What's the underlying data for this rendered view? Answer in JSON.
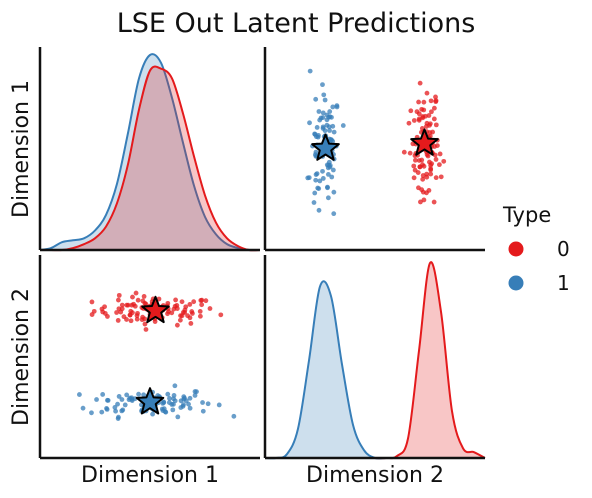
{
  "chart_data": {
    "type": "scatter",
    "title": "LSE Out Latent Predictions",
    "legend": {
      "title": "Type",
      "placement": "right",
      "items": [
        {
          "label": "0",
          "color": "#e41a1c"
        },
        {
          "label": "1",
          "color": "#377eb8"
        }
      ]
    },
    "row_labels": [
      "Dimension 1",
      "Dimension 2"
    ],
    "col_labels": [
      "Dimension 1",
      "Dimension 2"
    ],
    "grid": false,
    "axis_ranges": {
      "dim1": [
        -1.0,
        1.0
      ],
      "dim2": [
        -1.0,
        1.0
      ]
    },
    "diagonal": [
      {
        "variable": "Dimension 1",
        "type": "kde",
        "x": [
          -1.0,
          -0.9,
          -0.8,
          -0.7,
          -0.6,
          -0.5,
          -0.4,
          -0.3,
          -0.2,
          -0.1,
          0.0,
          0.1,
          0.2,
          0.3,
          0.4,
          0.5,
          0.6,
          0.7,
          0.8,
          0.9,
          1.0
        ],
        "series": [
          {
            "name": "1",
            "color": "#377eb8",
            "values": [
              0.0,
              0.01,
              0.04,
              0.05,
              0.06,
              0.1,
              0.18,
              0.34,
              0.6,
              0.88,
              1.0,
              0.96,
              0.78,
              0.55,
              0.33,
              0.17,
              0.08,
              0.03,
              0.01,
              0.0,
              0.0
            ]
          },
          {
            "name": "0",
            "color": "#e41a1c",
            "values": [
              0.0,
              0.0,
              0.0,
              0.01,
              0.03,
              0.06,
              0.12,
              0.24,
              0.44,
              0.72,
              0.92,
              0.93,
              0.88,
              0.7,
              0.48,
              0.28,
              0.14,
              0.06,
              0.02,
              0.0,
              0.0
            ]
          }
        ]
      },
      {
        "variable": "Dimension 2",
        "type": "kde",
        "x": [
          -1.0,
          -0.9,
          -0.8,
          -0.7,
          -0.6,
          -0.5,
          -0.4,
          -0.3,
          -0.2,
          -0.1,
          0.0,
          0.1,
          0.2,
          0.3,
          0.4,
          0.5,
          0.6,
          0.7,
          0.8,
          0.9,
          1.0
        ],
        "series": [
          {
            "name": "1",
            "color": "#377eb8",
            "values": [
              0.0,
              0.0,
              0.02,
              0.15,
              0.5,
              0.88,
              0.83,
              0.48,
              0.17,
              0.04,
              0.0,
              0.0,
              0.0,
              0.0,
              0.0,
              0.0,
              0.0,
              0.0,
              0.0,
              0.0,
              0.0
            ]
          },
          {
            "name": "0",
            "color": "#e41a1c",
            "values": [
              0.0,
              0.0,
              0.0,
              0.0,
              0.0,
              0.0,
              0.0,
              0.0,
              0.0,
              0.0,
              0.0,
              0.0,
              0.01,
              0.1,
              0.55,
              1.0,
              0.75,
              0.24,
              0.05,
              0.03,
              0.0
            ]
          }
        ]
      }
    ],
    "scatter": {
      "points_per_type": 100,
      "series": [
        {
          "name": "0",
          "color": "#e41a1c",
          "center": {
            "dim1": 0.05,
            "dim2": 0.45
          },
          "spread": {
            "dim1": 0.28,
            "dim2": 0.07
          }
        },
        {
          "name": "1",
          "color": "#377eb8",
          "center": {
            "dim1": 0.0,
            "dim2": -0.45
          },
          "spread": {
            "dim1": 0.28,
            "dim2": 0.07
          }
        }
      ]
    },
    "centroids": [
      {
        "name": "0",
        "color": "#e41a1c",
        "dim1": 0.05,
        "dim2": 0.45,
        "marker": "star"
      },
      {
        "name": "1",
        "color": "#377eb8",
        "dim1": 0.0,
        "dim2": -0.45,
        "marker": "star"
      }
    ]
  }
}
